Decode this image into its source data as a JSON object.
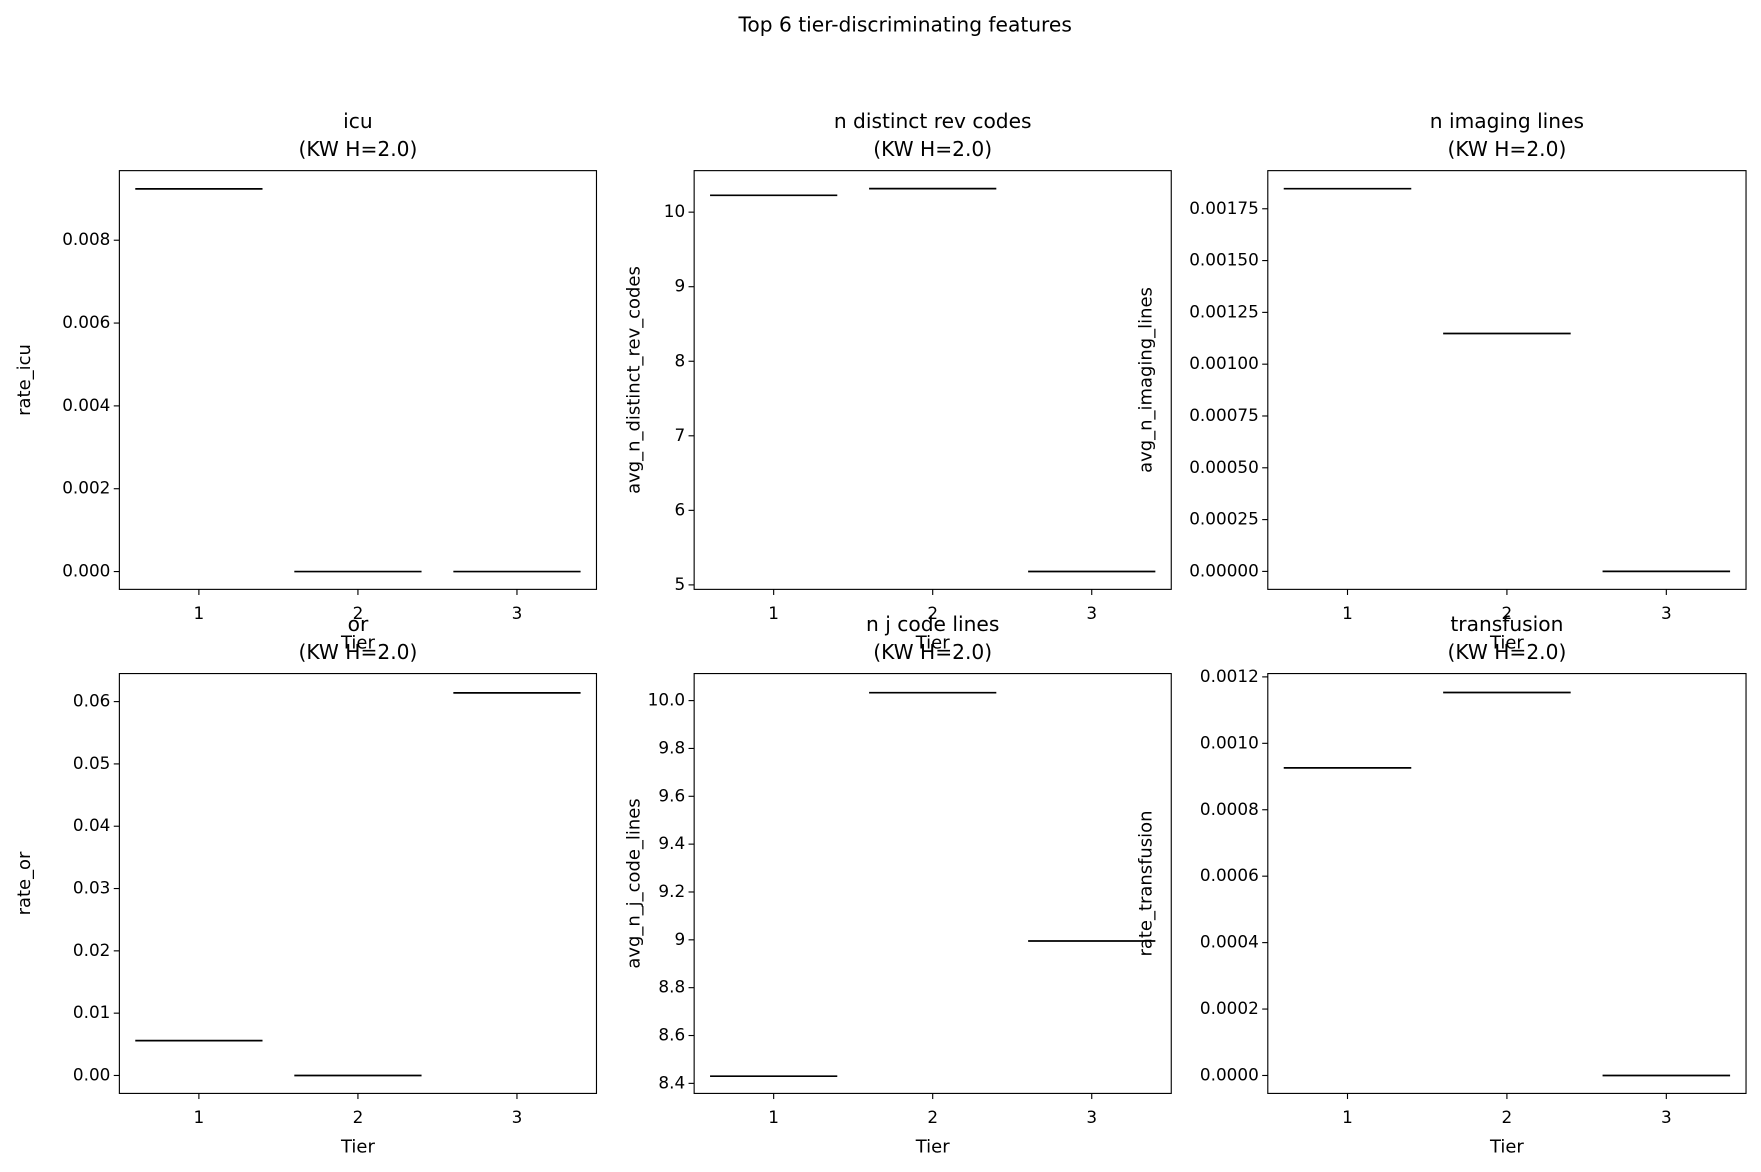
{
  "title": "Top 6 tier-discriminating features",
  "chart_data": [
    {
      "type": "box",
      "title": "icu",
      "subtitle": "(KW H=2.0)",
      "xlabel": "Tier",
      "ylabel": "rate_icu",
      "categories": [
        "1",
        "2",
        "3"
      ],
      "values": [
        0.00924,
        0,
        0
      ],
      "color": "#000000",
      "ylim": [
        -0.00043,
        0.00968
      ],
      "yticks": [
        {
          "value": 0,
          "label": "0.000"
        },
        {
          "value": 0.002,
          "label": "0.002"
        },
        {
          "value": 0.004,
          "label": "0.004"
        },
        {
          "value": 0.006,
          "label": "0.006"
        },
        {
          "value": 0.008,
          "label": "0.008"
        }
      ]
    },
    {
      "type": "box",
      "title": "n distinct rev codes",
      "subtitle": "(KW H=2.0)",
      "xlabel": "Tier",
      "ylabel": "avg_n_distinct_rev_codes",
      "categories": [
        "1",
        "2",
        "3"
      ],
      "values": [
        10.226,
        10.316,
        5.18
      ],
      "color": "#000000",
      "ylim": [
        4.94,
        10.557
      ],
      "yticks": [
        5,
        6,
        7,
        8,
        9,
        10
      ]
    },
    {
      "type": "box",
      "title": "n imaging lines",
      "subtitle": "(KW H=2.0)",
      "xlabel": "Tier",
      "ylabel": "avg_n_imaging_lines",
      "categories": [
        "1",
        "2",
        "3"
      ],
      "values": [
        0.001847,
        0.001148,
        0
      ],
      "color": "#000000",
      "ylim": [
        -8.67e-05,
        0.001934
      ],
      "yticks": [
        {
          "value": 0,
          "label": "0.00000"
        },
        {
          "value": 0.00025,
          "label": "0.00025"
        },
        {
          "value": 0.0005,
          "label": "0.00050"
        },
        {
          "value": 0.00075,
          "label": "0.00075"
        },
        {
          "value": 0.001,
          "label": "0.00100"
        },
        {
          "value": 0.00125,
          "label": "0.00125"
        },
        {
          "value": 0.0015,
          "label": "0.00150"
        },
        {
          "value": 0.00175,
          "label": "0.00175"
        }
      ]
    },
    {
      "type": "box",
      "title": "or",
      "subtitle": "(KW H=2.0)",
      "xlabel": "Tier",
      "ylabel": "rate_or",
      "categories": [
        "1",
        "2",
        "3"
      ],
      "values": [
        0.00559,
        0,
        0.0614
      ],
      "color": "#000000",
      "ylim": [
        -0.00288,
        0.0645
      ],
      "yticks": [
        {
          "value": 0,
          "label": "0.00"
        },
        {
          "value": 0.01,
          "label": "0.01"
        },
        {
          "value": 0.02,
          "label": "0.02"
        },
        {
          "value": 0.03,
          "label": "0.03"
        },
        {
          "value": 0.04,
          "label": "0.04"
        },
        {
          "value": 0.05,
          "label": "0.05"
        },
        {
          "value": 0.06,
          "label": "0.06"
        }
      ]
    },
    {
      "type": "box",
      "title": "n j code lines",
      "subtitle": "(KW H=2.0)",
      "xlabel": "Tier",
      "ylabel": "avg_n_j_code_lines",
      "categories": [
        "1",
        "2",
        "3"
      ],
      "values": [
        8.43,
        10.033,
        8.995
      ],
      "color": "#000000",
      "ylim": [
        8.358,
        10.113
      ],
      "yticks": [
        8.4,
        8.6,
        8.8,
        9,
        {
          "value": 9.2,
          "label": "9.2"
        },
        9.4,
        9.6,
        9.8,
        {
          "value": 10,
          "label": "10.0"
        }
      ]
    },
    {
      "type": "box",
      "title": "transfusion",
      "subtitle": "(KW H=2.0)",
      "xlabel": "Tier",
      "ylabel": "rate_transfusion",
      "categories": [
        "1",
        "2",
        "3"
      ],
      "values": [
        0.000926,
        0.001153,
        0
      ],
      "color": "#000000",
      "ylim": [
        -5.4e-05,
        0.00121
      ],
      "yticks": [
        {
          "value": 0,
          "label": "0.0000"
        },
        {
          "value": 0.0002,
          "label": "0.0002"
        },
        {
          "value": 0.0004,
          "label": "0.0004"
        },
        {
          "value": 0.0006,
          "label": "0.0006"
        },
        {
          "value": 0.0008,
          "label": "0.0008"
        },
        {
          "value": 0.001,
          "label": "0.0010"
        },
        {
          "value": 0.0012,
          "label": "0.0012"
        }
      ]
    }
  ]
}
